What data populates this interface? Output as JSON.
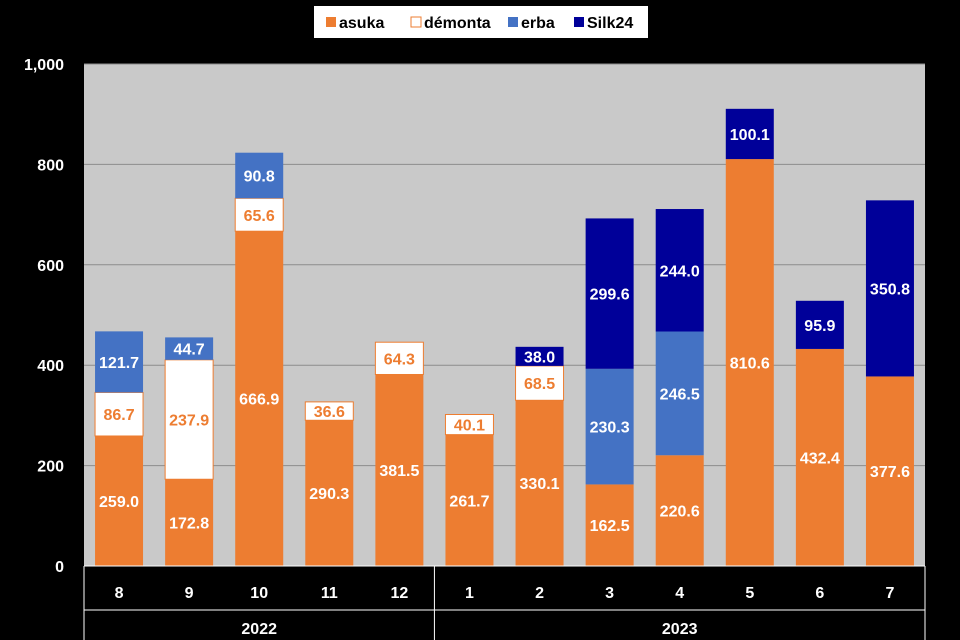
{
  "chart_data": {
    "type": "bar",
    "stacked": true,
    "categories": [
      "8",
      "9",
      "10",
      "11",
      "12",
      "1",
      "2",
      "3",
      "4",
      "5",
      "6",
      "7"
    ],
    "groups": [
      {
        "label": "2022",
        "categories": [
          "8",
          "9",
          "10",
          "11",
          "12"
        ]
      },
      {
        "label": "2023",
        "categories": [
          "1",
          "2",
          "3",
          "4",
          "5",
          "6",
          "7"
        ]
      }
    ],
    "series": [
      {
        "name": "asuka",
        "color": "#ED7D31",
        "label_color": "#FFFFFF",
        "values": [
          259.0,
          172.8,
          666.9,
          290.3,
          381.5,
          261.7,
          330.1,
          162.5,
          220.6,
          810.6,
          432.4,
          377.6
        ]
      },
      {
        "name": "démonta",
        "color": "#FFFFFF",
        "border_color": "#ED7D31",
        "label_color": "#ED7D31",
        "values": [
          86.7,
          237.9,
          65.6,
          36.6,
          64.3,
          40.1,
          68.5,
          null,
          null,
          null,
          null,
          null
        ]
      },
      {
        "name": "erba",
        "color": "#4472C4",
        "label_color": "#FFFFFF",
        "values": [
          121.7,
          44.7,
          90.8,
          null,
          null,
          null,
          null,
          230.3,
          246.5,
          null,
          null,
          null
        ]
      },
      {
        "name": "Silk24",
        "color": "#000099",
        "label_color": "#FFFFFF",
        "values": [
          null,
          null,
          null,
          null,
          null,
          null,
          38.0,
          299.6,
          244.0,
          100.1,
          95.9,
          350.8
        ]
      }
    ],
    "y_ticks": [
      "0",
      "200",
      "400",
      "600",
      "800",
      "1,000"
    ],
    "ylim": [
      0,
      1000
    ],
    "grid": true,
    "legend_position": "top",
    "plot_background": "#C9C9C9",
    "title": "",
    "xlabel": "",
    "ylabel": ""
  }
}
